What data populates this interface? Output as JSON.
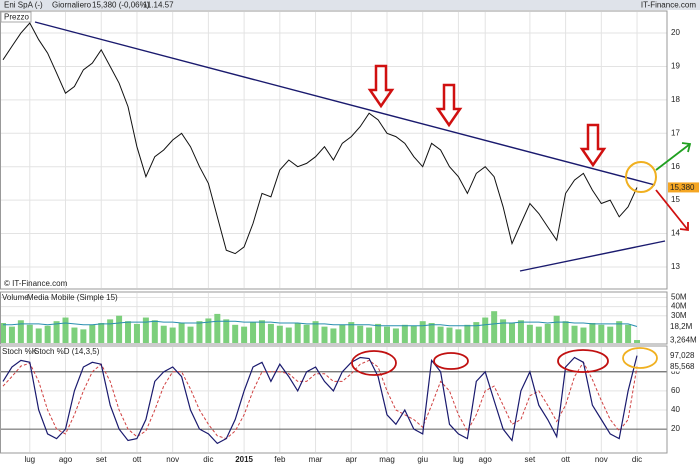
{
  "header": {
    "title": "Eni SpA (-)",
    "period": "Giornaliero",
    "quote": "15,380 (-0,06%)",
    "time": "11.14.57",
    "source": "IT-Finance.com"
  },
  "chart_data": [
    {
      "type": "line",
      "label": "Prezzo",
      "watermark": "© IT-Finance.com",
      "color": "#111111",
      "values": [
        19.2,
        19.6,
        20.0,
        20.3,
        19.8,
        19.4,
        18.8,
        18.2,
        18.4,
        18.9,
        19.1,
        19.5,
        19.0,
        18.5,
        17.8,
        16.6,
        15.7,
        16.3,
        16.5,
        16.8,
        17.0,
        16.6,
        16.0,
        15.5,
        14.5,
        13.5,
        13.4,
        13.6,
        14.3,
        15.2,
        15.1,
        15.9,
        16.2,
        16.0,
        16.1,
        16.3,
        16.6,
        16.2,
        16.7,
        16.9,
        17.2,
        17.6,
        17.4,
        17.0,
        16.9,
        16.7,
        16.3,
        16.0,
        16.7,
        16.5,
        16.0,
        15.7,
        15.2,
        15.8,
        16.0,
        15.7,
        14.8,
        13.7,
        14.3,
        14.9,
        14.6,
        14.2,
        13.8,
        15.2,
        15.6,
        15.8,
        15.3,
        14.9,
        15.0,
        14.5,
        14.8,
        15.38
      ],
      "last_label": {
        "value": 15.38,
        "label": "15,380"
      },
      "ylim": [
        12.37,
        20.63
      ],
      "yticks": [
        13,
        14,
        15,
        16,
        17,
        18,
        19,
        20
      ],
      "grid": true
    },
    {
      "type": "bar",
      "series": [
        {
          "name": "Volume",
          "color": "#7ccf7c",
          "values": [
            22000000,
            18000000,
            25000000,
            20000000,
            16000000,
            19000000,
            24000000,
            28000000,
            17000000,
            15000000,
            20000000,
            22000000,
            26000000,
            30000000,
            24000000,
            21000000,
            28000000,
            25000000,
            19000000,
            17000000,
            22000000,
            18000000,
            24000000,
            27000000,
            32000000,
            26000000,
            20000000,
            18000000,
            23000000,
            25000000,
            21000000,
            19000000,
            17000000,
            22000000,
            20000000,
            24000000,
            18000000,
            16000000,
            20000000,
            23000000,
            19000000,
            17000000,
            21000000,
            18000000,
            16000000,
            20000000,
            19000000,
            24000000,
            22000000,
            18000000,
            17000000,
            15000000,
            20000000,
            23000000,
            28000000,
            35000000,
            26000000,
            22000000,
            25000000,
            20000000,
            18000000,
            21000000,
            30000000,
            24000000,
            19000000,
            17000000,
            22000000,
            20000000,
            18000000,
            24000000,
            20000000,
            3264000
          ],
          "last_label": {
            "value": 3264000,
            "label": "3,264M"
          }
        },
        {
          "name": "Media Mobile (Simple 15)",
          "color": "#2a8fb0",
          "values": [
            20000000,
            20000000,
            21000000,
            21000000,
            21000000,
            20000000,
            21000000,
            22000000,
            21000000,
            20000000,
            20000000,
            21000000,
            21000000,
            22000000,
            23000000,
            23000000,
            23000000,
            24000000,
            23000000,
            23000000,
            22000000,
            22000000,
            22000000,
            23000000,
            24000000,
            24000000,
            24000000,
            23000000,
            23000000,
            23000000,
            23000000,
            22000000,
            22000000,
            22000000,
            21000000,
            21000000,
            21000000,
            20000000,
            20000000,
            20000000,
            20000000,
            20000000,
            19000000,
            19000000,
            19000000,
            19000000,
            19000000,
            19000000,
            20000000,
            20000000,
            19000000,
            19000000,
            19000000,
            19000000,
            20000000,
            21000000,
            22000000,
            22000000,
            23000000,
            23000000,
            23000000,
            22000000,
            23000000,
            23000000,
            22000000,
            22000000,
            21000000,
            21000000,
            21000000,
            21000000,
            21000000,
            18200000
          ],
          "last_label": {
            "value": 18200000,
            "label": "18,2M"
          }
        }
      ],
      "ylim": [
        0,
        55000000
      ],
      "yticks": [
        {
          "value": 30000000,
          "label": "30M"
        },
        {
          "value": 40000000,
          "label": "40M"
        },
        {
          "value": 50000000,
          "label": "50M"
        }
      ],
      "grid": true
    },
    {
      "type": "line",
      "categories": [
        null,
        null,
        null,
        "lug",
        null,
        null,
        null,
        "ago",
        null,
        null,
        null,
        "set",
        null,
        null,
        null,
        "ott",
        null,
        null,
        null,
        "nov",
        null,
        null,
        null,
        "dic",
        null,
        null,
        null,
        "2015",
        null,
        null,
        null,
        "feb",
        null,
        null,
        null,
        "mar",
        null,
        null,
        null,
        "apr",
        null,
        null,
        null,
        "mag",
        null,
        null,
        null,
        "giu",
        null,
        null,
        null,
        "lug",
        null,
        null,
        "ago",
        null,
        null,
        null,
        null,
        "set",
        null,
        null,
        null,
        "ott",
        null,
        null,
        null,
        "nov",
        null,
        null,
        null,
        "dic"
      ],
      "series": [
        {
          "name": "Stoch %K",
          "color": "#1a1a6e",
          "values": [
            70,
            85,
            92,
            90,
            40,
            15,
            10,
            20,
            60,
            85,
            90,
            88,
            45,
            20,
            8,
            10,
            30,
            70,
            80,
            85,
            75,
            40,
            20,
            15,
            5,
            10,
            30,
            60,
            85,
            90,
            70,
            88,
            75,
            60,
            80,
            85,
            70,
            60,
            80,
            90,
            95,
            94,
            75,
            35,
            25,
            40,
            20,
            15,
            92,
            80,
            25,
            15,
            10,
            70,
            80,
            50,
            20,
            8,
            60,
            80,
            45,
            30,
            12,
            85,
            95,
            90,
            45,
            30,
            15,
            10,
            60,
            97.028
          ],
          "last_label": {
            "value": 97.028,
            "label": "97,028"
          }
        },
        {
          "name": "Stoch %D (14,3,5)",
          "color": "#d04040",
          "values": [
            65,
            75,
            86,
            89,
            70,
            40,
            20,
            15,
            35,
            60,
            80,
            88,
            70,
            40,
            20,
            12,
            18,
            40,
            65,
            80,
            80,
            62,
            40,
            25,
            13,
            10,
            18,
            35,
            60,
            80,
            80,
            80,
            78,
            70,
            70,
            78,
            78,
            70,
            70,
            78,
            88,
            92,
            85,
            60,
            40,
            35,
            30,
            22,
            45,
            70,
            60,
            35,
            18,
            35,
            60,
            65,
            45,
            25,
            30,
            55,
            60,
            45,
            28,
            45,
            75,
            90,
            72,
            50,
            30,
            18,
            30,
            85.568
          ],
          "last_label": {
            "value": 85.568,
            "label": "85,568"
          }
        }
      ],
      "levels": [
        20,
        80
      ],
      "ylim": [
        -4,
        106
      ],
      "yticks": [
        20,
        40,
        60,
        80
      ],
      "grid": true
    }
  ]
}
